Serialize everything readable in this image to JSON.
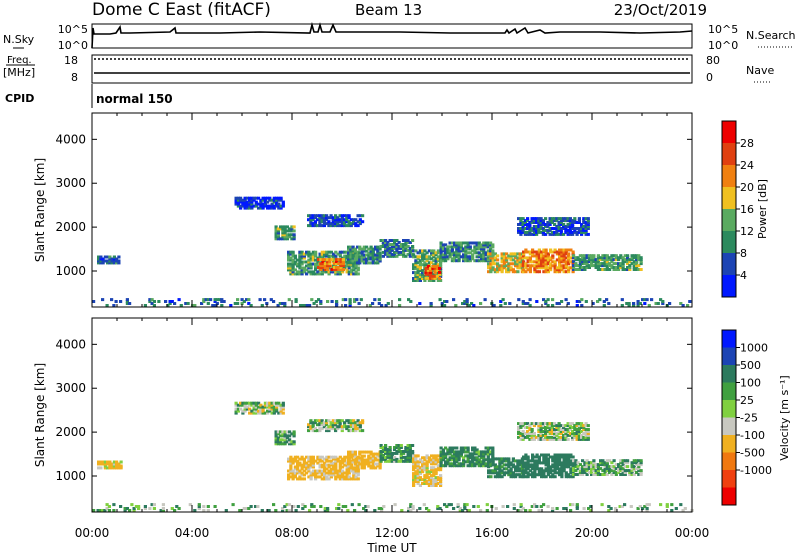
{
  "header": {
    "title": "Dome C East (fitACF)",
    "beam": "Beam 13",
    "date": "23/Oct/2019"
  },
  "nsky_panel": {
    "left_label": "N.Sky",
    "right_label": "N.Search",
    "ticks_left": [
      "10^5",
      "10^0"
    ],
    "ticks_right": [
      "10^5",
      "10^0"
    ]
  },
  "freq_panel": {
    "left_label_1": "Freq.",
    "left_label_2": "[MHz]",
    "right_label": "Nave",
    "ticks_left": [
      "18",
      "8"
    ],
    "ticks_right": [
      "80",
      "0"
    ]
  },
  "cpid_panel": {
    "left_label": "CPID",
    "mode": "normal 150"
  },
  "time_axis": {
    "label": "Time UT",
    "ticks": [
      "00:00",
      "04:00",
      "08:00",
      "12:00",
      "16:00",
      "20:00",
      "00:00"
    ]
  },
  "colors": {
    "power": [
      "#0018ff",
      "#1c44b4",
      "#2c8a5e",
      "#5aaa60",
      "#f0c020",
      "#f08010",
      "#e04010",
      "#ee0000"
    ],
    "velocity": [
      "#ee0000",
      "#f04010",
      "#f07810",
      "#f0b020",
      "#c8c8c0",
      "#80d040",
      "#40a040",
      "#2c7a5e",
      "#1c44b4",
      "#0018ff"
    ]
  },
  "chart_data": [
    {
      "type": "heatmap",
      "title": "",
      "xlabel": "Time UT",
      "ylabel": "Slant Range [km]",
      "xlim_hours": [
        0,
        24
      ],
      "ylim_km": [
        180,
        4600
      ],
      "yticks": [
        1000,
        2000,
        3000,
        4000
      ],
      "colorbar": {
        "label": "Power [dB]",
        "ticks": [
          "4",
          "8",
          "12",
          "16",
          "20",
          "24",
          "28"
        ],
        "range": [
          0,
          32
        ]
      },
      "regions": [
        {
          "t0": 0.2,
          "t1": 1.1,
          "r0": 1150,
          "r1": 1300,
          "level": 8
        },
        {
          "t0": 5.7,
          "t1": 7.6,
          "r0": 2400,
          "r1": 2650,
          "level": 4
        },
        {
          "t0": 7.3,
          "t1": 8.1,
          "r0": 1700,
          "r1": 2000,
          "level": 12
        },
        {
          "t0": 7.8,
          "t1": 10.6,
          "r0": 900,
          "r1": 1400,
          "level": 12
        },
        {
          "t0": 9.0,
          "t1": 10.0,
          "r0": 1000,
          "r1": 1250,
          "level": 24
        },
        {
          "t0": 8.6,
          "t1": 10.8,
          "r0": 2000,
          "r1": 2250,
          "level": 6
        },
        {
          "t0": 10.2,
          "t1": 11.5,
          "r0": 1150,
          "r1": 1550,
          "level": 10
        },
        {
          "t0": 11.5,
          "t1": 12.8,
          "r0": 1300,
          "r1": 1700,
          "level": 10
        },
        {
          "t0": 12.8,
          "t1": 13.9,
          "r0": 750,
          "r1": 1450,
          "level": 12
        },
        {
          "t0": 13.3,
          "t1": 13.9,
          "r0": 800,
          "r1": 1100,
          "level": 24
        },
        {
          "t0": 13.9,
          "t1": 16.0,
          "r0": 1200,
          "r1": 1650,
          "level": 10
        },
        {
          "t0": 15.8,
          "t1": 17.2,
          "r0": 950,
          "r1": 1400,
          "level": 18
        },
        {
          "t0": 17.2,
          "t1": 19.2,
          "r0": 950,
          "r1": 1450,
          "level": 22
        },
        {
          "t0": 17.0,
          "t1": 19.8,
          "r0": 1800,
          "r1": 2200,
          "level": 6
        },
        {
          "t0": 19.2,
          "t1": 21.9,
          "r0": 1000,
          "r1": 1350,
          "level": 12
        },
        {
          "t0": 0.0,
          "t1": 24.0,
          "r0": 180,
          "r1": 350,
          "level": 8
        }
      ]
    },
    {
      "type": "heatmap",
      "title": "",
      "xlabel": "Time UT",
      "ylabel": "Slant Range [km]",
      "xlim_hours": [
        0,
        24
      ],
      "ylim_km": [
        180,
        4600
      ],
      "yticks": [
        1000,
        2000,
        3000,
        4000
      ],
      "colorbar": {
        "label": "Velocity [m s⁻¹]",
        "ticks": [
          "1000",
          "500",
          "100",
          "25",
          "-25",
          "-100",
          "-500",
          "-1000"
        ],
        "range": [
          -1250,
          1250
        ]
      },
      "regions": [
        {
          "t0": 0.2,
          "t1": 1.1,
          "r0": 1150,
          "r1": 1300,
          "level": -150
        },
        {
          "t0": 5.7,
          "t1": 7.6,
          "r0": 2400,
          "r1": 2650,
          "level": 0
        },
        {
          "t0": 7.3,
          "t1": 8.1,
          "r0": 1700,
          "r1": 2000,
          "level": 80
        },
        {
          "t0": 7.8,
          "t1": 10.6,
          "r0": 900,
          "r1": 1400,
          "level": -180
        },
        {
          "t0": 8.6,
          "t1": 10.8,
          "r0": 2000,
          "r1": 2250,
          "level": 0
        },
        {
          "t0": 10.2,
          "t1": 11.5,
          "r0": 1150,
          "r1": 1550,
          "level": -200
        },
        {
          "t0": 11.5,
          "t1": 12.8,
          "r0": 1300,
          "r1": 1700,
          "level": 120
        },
        {
          "t0": 12.8,
          "t1": 13.9,
          "r0": 750,
          "r1": 1450,
          "level": -160
        },
        {
          "t0": 13.9,
          "t1": 16.0,
          "r0": 1200,
          "r1": 1650,
          "level": 150
        },
        {
          "t0": 15.8,
          "t1": 17.2,
          "r0": 950,
          "r1": 1400,
          "level": 200
        },
        {
          "t0": 17.2,
          "t1": 19.2,
          "r0": 950,
          "r1": 1450,
          "level": 250
        },
        {
          "t0": 17.0,
          "t1": 19.8,
          "r0": 1800,
          "r1": 2200,
          "level": 0
        },
        {
          "t0": 19.2,
          "t1": 21.9,
          "r0": 1000,
          "r1": 1350,
          "level": 60
        },
        {
          "t0": 0.0,
          "t1": 24.0,
          "r0": 180,
          "r1": 350,
          "level": 50
        }
      ]
    }
  ]
}
